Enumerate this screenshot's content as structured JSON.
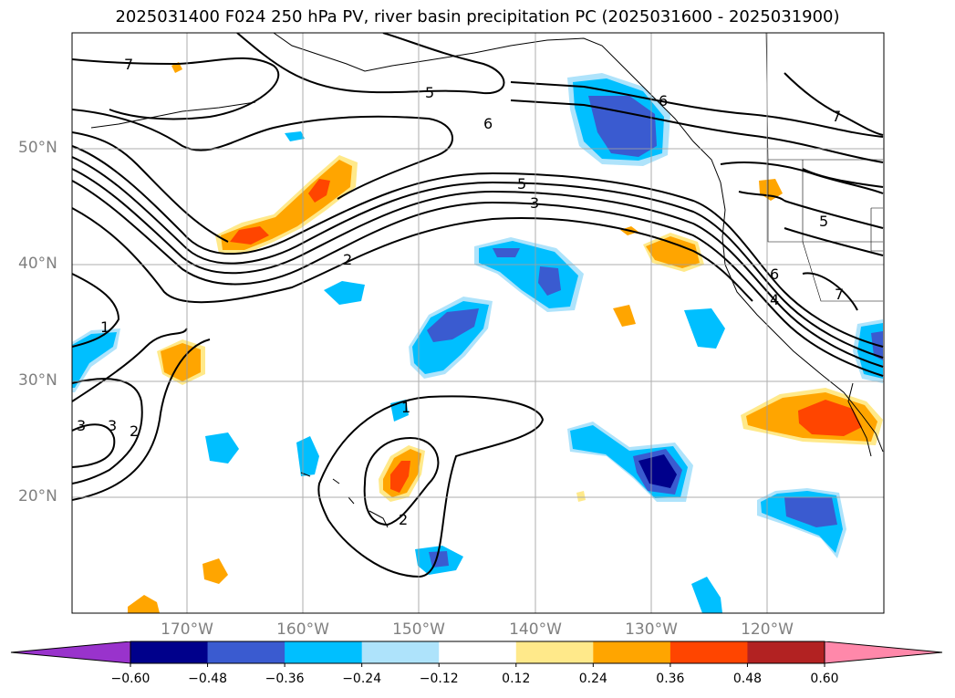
{
  "title": "2025031400 F024 250 hPa PV, river basin precipitation PC (2025031600 - 2025031900)",
  "lat_labels": [
    "50°N",
    "40°N",
    "30°N",
    "20°N"
  ],
  "lon_labels": [
    "170°W",
    "160°W",
    "150°W",
    "140°W",
    "130°W",
    "120°W"
  ],
  "contour_labels": [
    "7",
    "5",
    "6",
    "6",
    "5",
    "3",
    "2",
    "1",
    "3",
    "3",
    "2",
    "1",
    "2",
    "5",
    "6",
    "4",
    "7",
    "7"
  ],
  "colorbar": {
    "ticks": [
      "−0.60",
      "−0.48",
      "−0.36",
      "−0.24",
      "−0.12",
      "0.12",
      "0.24",
      "0.36",
      "0.48",
      "0.60"
    ],
    "colors": [
      "#9933cc",
      "#00008b",
      "#3a5bd0",
      "#00bfff",
      "#aee3fb",
      "#ffffff",
      "#ffe98a",
      "#ffa500",
      "#ff4500",
      "#b22222",
      "#ff88aa"
    ]
  },
  "colors": {
    "dark_blue": "#00008b",
    "medium_blue": "#3a5bd0",
    "blue": "#00bfff",
    "light_blue": "#aee3fb",
    "light_yellow": "#ffe98a",
    "orange": "#ffa500",
    "red_orange": "#ff4500"
  }
}
